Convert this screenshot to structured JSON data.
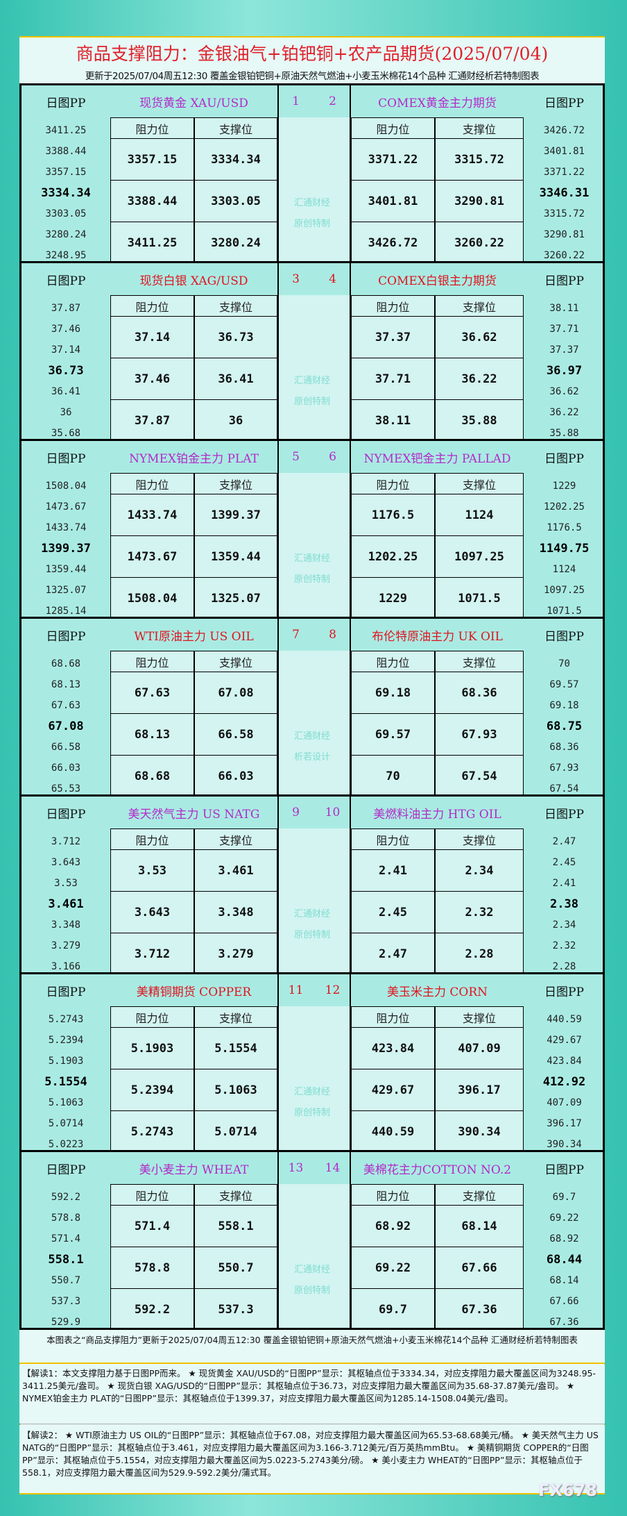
{
  "header": {
    "title": "商品支撑阻力：金银油气+铂钯铜+农产品期货(2025/07/04)",
    "subtitle": "更新于2025/07/04周五12:30  覆盖金银铂钯铜+原油天然气燃油+小麦玉米棉花14个品种  汇通财经析若特制图表"
  },
  "labels": {
    "pp": "日图PP",
    "res": "阻力位",
    "sup": "支撑位"
  },
  "colors": {
    "red": "#e0141e",
    "purple": "#b42ac8"
  },
  "sections": [
    {
      "color": "purple",
      "nl": "1",
      "nr": "2",
      "wm": [
        "汇通财经",
        "原创特制"
      ],
      "left": {
        "title": "现货黄金 XAU/USD",
        "pp": [
          "3411.25",
          "3388.44",
          "3357.15",
          "3334.34",
          "3303.05",
          "3280.24",
          "3248.95"
        ],
        "res": [
          "3357.15",
          "3388.44",
          "3411.25"
        ],
        "sup": [
          "3334.34",
          "3303.05",
          "3280.24"
        ]
      },
      "right": {
        "title": "COMEX黄金主力期货",
        "pp": [
          "3426.72",
          "3401.81",
          "3371.22",
          "3346.31",
          "3315.72",
          "3290.81",
          "3260.22"
        ],
        "res": [
          "3371.22",
          "3401.81",
          "3426.72"
        ],
        "sup": [
          "3315.72",
          "3290.81",
          "3260.22"
        ]
      }
    },
    {
      "color": "red",
      "nl": "3",
      "nr": "4",
      "wm": [
        "汇通财经",
        "原创特制"
      ],
      "left": {
        "title": "现货白银 XAG/USD",
        "pp": [
          "37.87",
          "37.46",
          "37.14",
          "36.73",
          "36.41",
          "36",
          "35.68"
        ],
        "res": [
          "37.14",
          "37.46",
          "37.87"
        ],
        "sup": [
          "36.73",
          "36.41",
          "36"
        ]
      },
      "right": {
        "title": "COMEX白银主力期货",
        "pp": [
          "38.11",
          "37.71",
          "37.37",
          "36.97",
          "36.62",
          "36.22",
          "35.88"
        ],
        "res": [
          "37.37",
          "37.71",
          "38.11"
        ],
        "sup": [
          "36.62",
          "36.22",
          "35.88"
        ]
      }
    },
    {
      "color": "purple",
      "nl": "5",
      "nr": "6",
      "wm": [
        "汇通财经",
        "原创特制"
      ],
      "left": {
        "title": "NYMEX铂金主力 PLAT",
        "pp": [
          "1508.04",
          "1473.67",
          "1433.74",
          "1399.37",
          "1359.44",
          "1325.07",
          "1285.14"
        ],
        "res": [
          "1433.74",
          "1473.67",
          "1508.04"
        ],
        "sup": [
          "1399.37",
          "1359.44",
          "1325.07"
        ]
      },
      "right": {
        "title": "NYMEX钯金主力 PALLAD",
        "pp": [
          "1229",
          "1202.25",
          "1176.5",
          "1149.75",
          "1124",
          "1097.25",
          "1071.5"
        ],
        "res": [
          "1176.5",
          "1202.25",
          "1229"
        ],
        "sup": [
          "1124",
          "1097.25",
          "1071.5"
        ]
      }
    },
    {
      "color": "red",
      "nl": "7",
      "nr": "8",
      "wm": [
        "汇通财经",
        "析若设计"
      ],
      "left": {
        "title": "WTI原油主力 US OIL",
        "pp": [
          "68.68",
          "68.13",
          "67.63",
          "67.08",
          "66.58",
          "66.03",
          "65.53"
        ],
        "res": [
          "67.63",
          "68.13",
          "68.68"
        ],
        "sup": [
          "67.08",
          "66.58",
          "66.03"
        ]
      },
      "right": {
        "title": "布伦特原油主力 UK OIL",
        "pp": [
          "70",
          "69.57",
          "69.18",
          "68.75",
          "68.36",
          "67.93",
          "67.54"
        ],
        "res": [
          "69.18",
          "69.57",
          "70"
        ],
        "sup": [
          "68.36",
          "67.93",
          "67.54"
        ]
      }
    },
    {
      "color": "purple",
      "nl": "9",
      "nr": "10",
      "wm": [
        "汇通财经",
        "原创特制"
      ],
      "left": {
        "title": "美天然气主力 US NATG",
        "pp": [
          "3.712",
          "3.643",
          "3.53",
          "3.461",
          "3.348",
          "3.279",
          "3.166"
        ],
        "res": [
          "3.53",
          "3.643",
          "3.712"
        ],
        "sup": [
          "3.461",
          "3.348",
          "3.279"
        ]
      },
      "right": {
        "title": "美燃料油主力 HTG OIL",
        "pp": [
          "2.47",
          "2.45",
          "2.41",
          "2.38",
          "2.34",
          "2.32",
          "2.28"
        ],
        "res": [
          "2.41",
          "2.45",
          "2.47"
        ],
        "sup": [
          "2.34",
          "2.32",
          "2.28"
        ]
      }
    },
    {
      "color": "red",
      "nl": "11",
      "nr": "12",
      "wm": [
        "汇通财经",
        "原创特制"
      ],
      "left": {
        "title": "美精铜期货 COPPER",
        "pp": [
          "5.2743",
          "5.2394",
          "5.1903",
          "5.1554",
          "5.1063",
          "5.0714",
          "5.0223"
        ],
        "res": [
          "5.1903",
          "5.2394",
          "5.2743"
        ],
        "sup": [
          "5.1554",
          "5.1063",
          "5.0714"
        ]
      },
      "right": {
        "title": "美玉米主力 CORN",
        "pp": [
          "440.59",
          "429.67",
          "423.84",
          "412.92",
          "407.09",
          "396.17",
          "390.34"
        ],
        "res": [
          "423.84",
          "429.67",
          "440.59"
        ],
        "sup": [
          "407.09",
          "396.17",
          "390.34"
        ]
      }
    },
    {
      "color": "purple",
      "nl": "13",
      "nr": "14",
      "wm": [
        "汇通财经",
        "原创特制"
      ],
      "left": {
        "title": "美小麦主力 WHEAT",
        "pp": [
          "592.2",
          "578.8",
          "571.4",
          "558.1",
          "550.7",
          "537.3",
          "529.9"
        ],
        "res": [
          "571.4",
          "578.8",
          "592.2"
        ],
        "sup": [
          "558.1",
          "550.7",
          "537.3"
        ]
      },
      "right": {
        "title": "美棉花主力COTTON NO.2",
        "pp": [
          "69.7",
          "69.22",
          "68.92",
          "68.44",
          "68.14",
          "67.66",
          "67.36"
        ],
        "res": [
          "68.92",
          "69.22",
          "69.7"
        ],
        "sup": [
          "68.14",
          "67.66",
          "67.36"
        ]
      }
    }
  ],
  "footer": {
    "note": "本图表之“商品支撑阻力”更新于2025/07/04周五12:30 覆盖金银铂钯铜+原油天然气燃油+小麦玉米棉花14个品种 汇通财经析若特制图表",
    "interp1": "【解读1：本文支撑阻力基于日图PP而来。 ★ 现货黄金 XAU/USD的“日图PP”显示：其枢轴点位于3334.34，对应支撑阻力最大覆盖区间为3248.95-3411.25美元/盎司。 ★ 现货白银 XAG/USD的“日图PP”显示：其枢轴点位于36.73，对应支撑阻力最大覆盖区间为35.68-37.87美元/盎司。 ★ NYMEX铂金主力 PLAT的“日图PP”显示：其枢轴点位于1399.37，对应支撑阻力最大覆盖区间为1285.14-1508.04美元/盎司。",
    "interp2": "【解读2： ★ WTI原油主力 US OIL的“日图PP”显示：其枢轴点位于67.08，对应支撑阻力最大覆盖区间为65.53-68.68美元/桶。 ★ 美天然气主力 US NATG的“日图PP”显示：其枢轴点位于3.461，对应支撑阻力最大覆盖区间为3.166-3.712美元/百万英热mmBtu。 ★ 美精铜期货 COPPER的“日图PP”显示：其枢轴点位于5.1554，对应支撑阻力最大覆盖区间为5.0223-5.2743美分/磅。 ★ 美小麦主力 WHEAT的“日图PP”显示：其枢轴点位于558.1，对应支撑阻力最大覆盖区间为529.9-592.2美分/蒲式耳。",
    "watermark": "FX678"
  }
}
